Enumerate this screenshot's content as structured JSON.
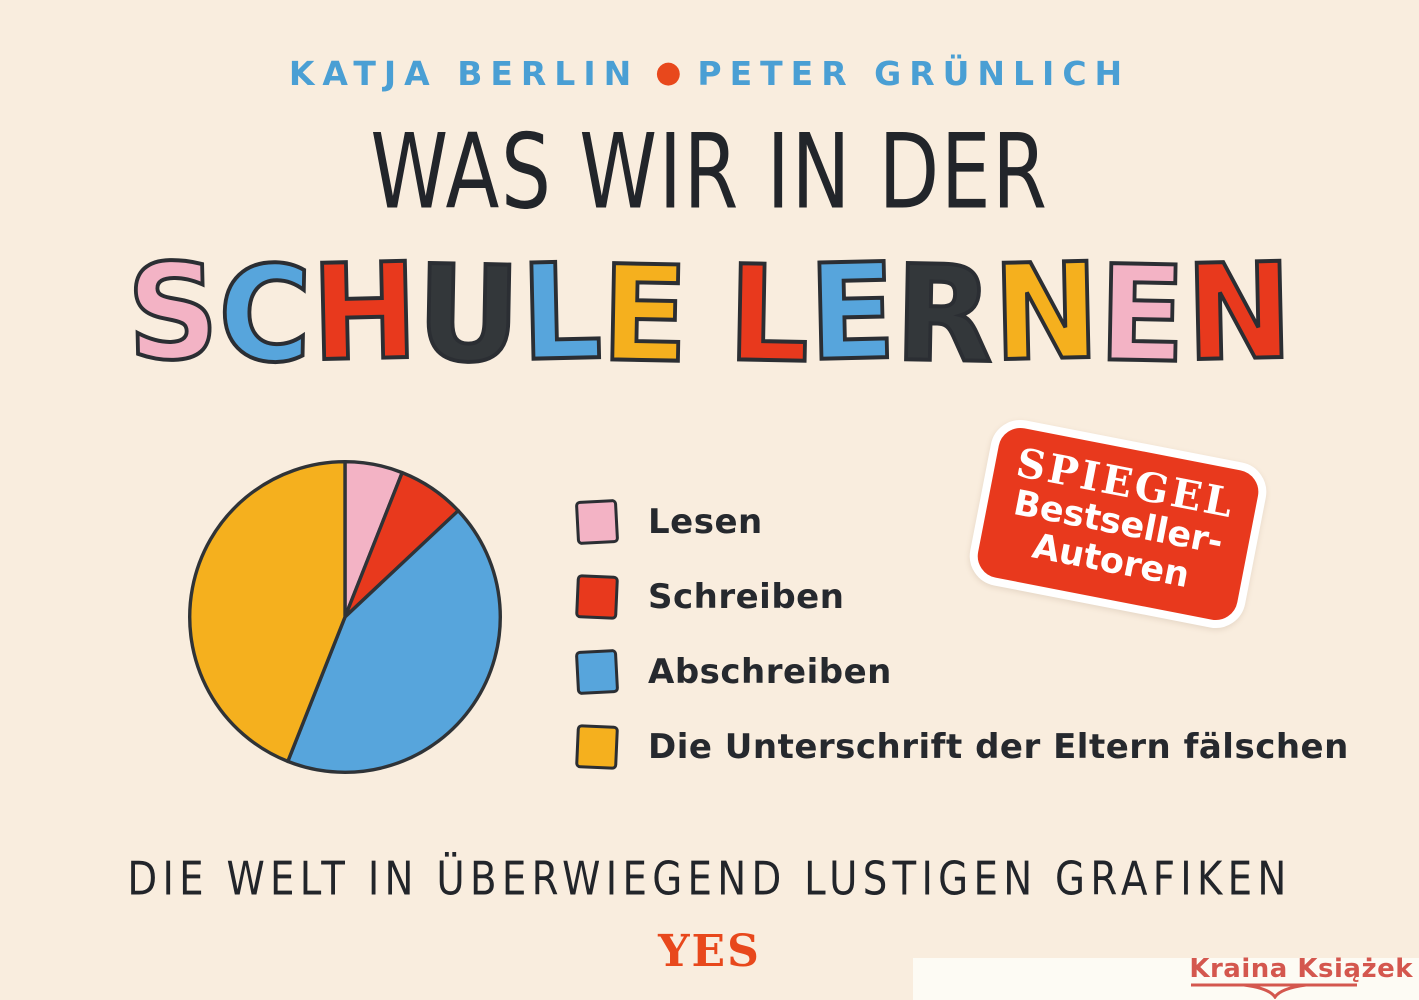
{
  "page": {
    "background": "#f9edde"
  },
  "authors": {
    "name1": "KATJA BERLIN",
    "separator": "●",
    "name2": "PETER GRÜNLICH",
    "text_color": "#4a9fd4",
    "dot_color": "#e8481c"
  },
  "title": {
    "line1": "WAS WIR IN DER",
    "line2": "SCHULE LERNEN",
    "outline_color": "#2b2e33",
    "line2_letters": [
      {
        "ch": "S",
        "color": "#f3b3c5"
      },
      {
        "ch": "C",
        "color": "#57a5dc"
      },
      {
        "ch": "H",
        "color": "#e8391d"
      },
      {
        "ch": "U",
        "color": "#33373a"
      },
      {
        "ch": "L",
        "color": "#57a5dc"
      },
      {
        "ch": "E",
        "color": "#f5b01e"
      },
      {
        "ch": " ",
        "color": ""
      },
      {
        "ch": "L",
        "color": "#e8391d"
      },
      {
        "ch": "E",
        "color": "#57a5dc"
      },
      {
        "ch": "R",
        "color": "#33373a"
      },
      {
        "ch": "N",
        "color": "#f5b01e"
      },
      {
        "ch": "E",
        "color": "#f3b3c5"
      },
      {
        "ch": "N",
        "color": "#e8391d"
      }
    ]
  },
  "chart_data": {
    "type": "pie",
    "labels": [
      "Lesen",
      "Schreiben",
      "Abschreiben",
      "Die Unterschrift der Eltern fälschen"
    ],
    "values": [
      6,
      7,
      43,
      44
    ],
    "unit": "percent",
    "colors": [
      "#f3b3c5",
      "#e8391d",
      "#57a5dc",
      "#f5b01e"
    ],
    "outline_color": "#2f3337",
    "start_angle_deg": -90,
    "direction": "clockwise",
    "legend_position": "right",
    "title": "Was wir in der Schule lernen"
  },
  "badge": {
    "line1": "SPIEGEL",
    "line2": "Bestseller-",
    "line3": "Autoren",
    "bg_color": "#e8391d",
    "text_color": "#ffffff",
    "rotation_deg": 11
  },
  "subtitle": "DIE WELT IN ÜBERWIEGEND LUSTIGEN GRAFIKEN",
  "publisher": {
    "logo_text": "YES",
    "color": "#e8481c"
  },
  "watermark": {
    "text": "Kraina Książek",
    "color": "#d4574e",
    "strip_color": "#fdfbf4"
  }
}
